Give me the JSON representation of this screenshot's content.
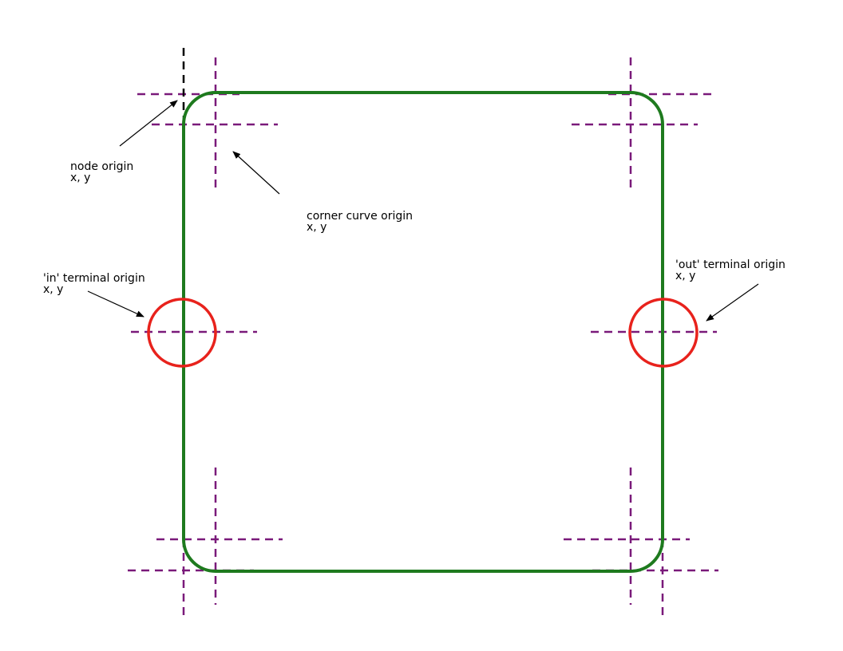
{
  "colors": {
    "node_border": "#1e7a1e",
    "guide": "#7a1a7a",
    "terminal": "#e8221c",
    "arrow": "#000000",
    "background": "#ffffff"
  },
  "labels": {
    "node_origin": {
      "title": "node origin",
      "coords": "x, y"
    },
    "corner_curve_origin": {
      "title": "corner curve origin",
      "coords": "x, y"
    },
    "in_terminal_origin": {
      "title": "'in' terminal origin",
      "coords": "x, y"
    },
    "out_terminal_origin": {
      "title": "'out' terminal origin",
      "coords": "x, y"
    }
  }
}
